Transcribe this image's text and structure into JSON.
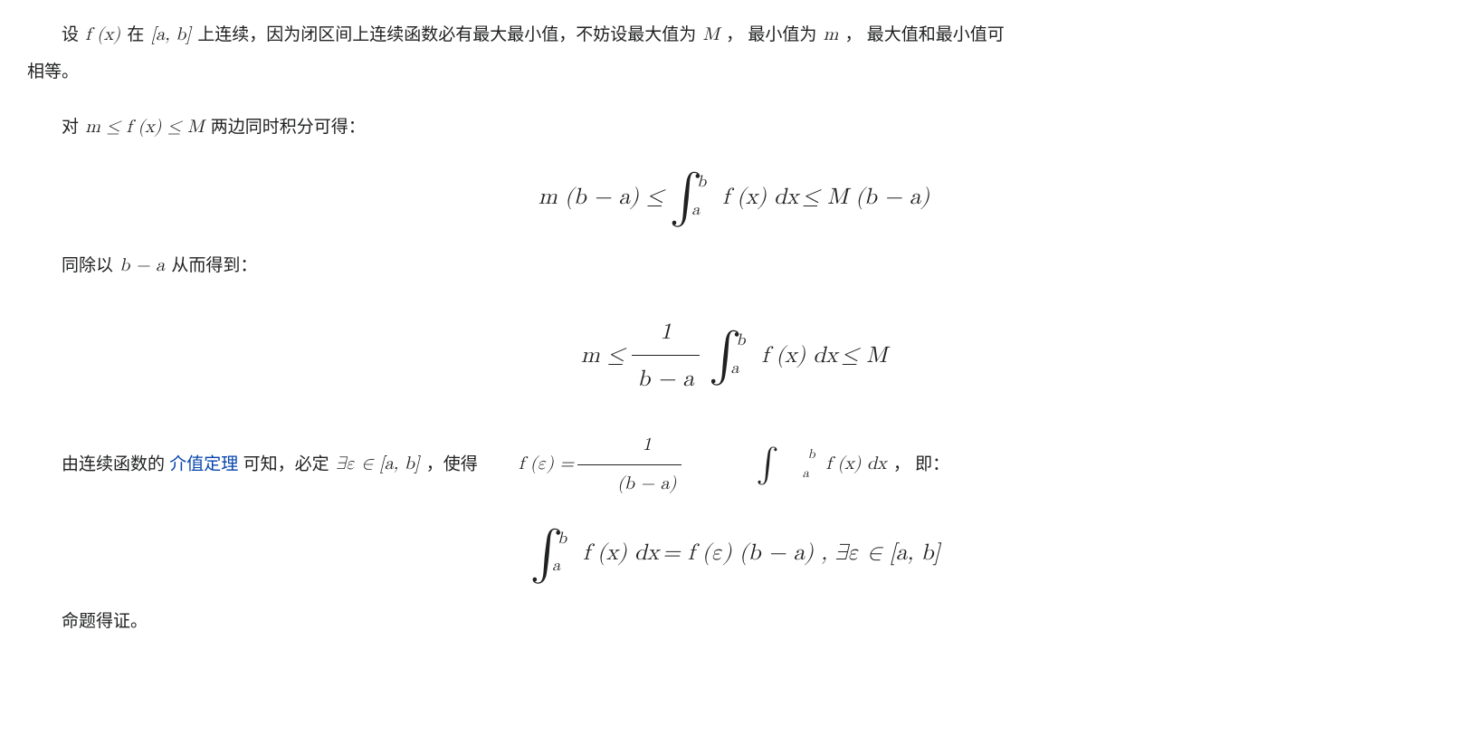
{
  "content": {
    "para1_pre": "设 ",
    "para1_m1": "f (x)",
    "para1_mid1": " 在 ",
    "para1_m2": "[a, b]",
    "para1_mid2": " 上连续，因为闭区间上连续函数必有最大最小值，不妨设最大值为 ",
    "para1_m3": "M",
    "para1_mid3": " ， 最小值为 ",
    "para1_m4": "m",
    "para1_mid4": " ， 最大值和最小值可",
    "para1_cont": "相等。",
    "para2_pre": "对 ",
    "para2_m1": "m ≤ f (x) ≤ M",
    "para2_post": " 两边同时积分可得：",
    "para3_pre": "同除以 ",
    "para3_m1": "b − a",
    "para3_post": " 从而得到：",
    "para4_pre": "由连续函数的",
    "para4_link": "介值定理",
    "para4_mid1": "可知，必定 ",
    "para4_m1": "∃ε ∈ [a, b]",
    "para4_mid2": " ，使得 ",
    "para4_m2_lhs": "f (ε) = ",
    "para4_post": " ， 即：",
    "para5": "命题得证。"
  },
  "formulas": {
    "eq1": {
      "lhs": "m (b − a) ≤",
      "int_lower": "a",
      "int_upper": "b",
      "integrand": "f (x) dx",
      "rhs": "≤ M (b − a)"
    },
    "eq2": {
      "lhs": "m ≤",
      "frac_num": "1",
      "frac_den": "b − a",
      "int_lower": "a",
      "int_upper": "b",
      "integrand": "f (x) dx",
      "rhs": "≤ M"
    },
    "eq_inline": {
      "frac_num": "1",
      "frac_den": "(b − a)",
      "int_lower": "a",
      "int_upper": "b",
      "integrand": "f (x) dx"
    },
    "eq3": {
      "int_lower": "a",
      "int_upper": "b",
      "integrand": "f (x) dx",
      "rhs": "= f (ε) (b − a) , ∃ε ∈ [a, b]"
    }
  },
  "style": {
    "text_color": "#202122",
    "link_color": "#0645ad",
    "background": "#ffffff",
    "body_fontsize": 19,
    "formula_fontsize": 25
  }
}
